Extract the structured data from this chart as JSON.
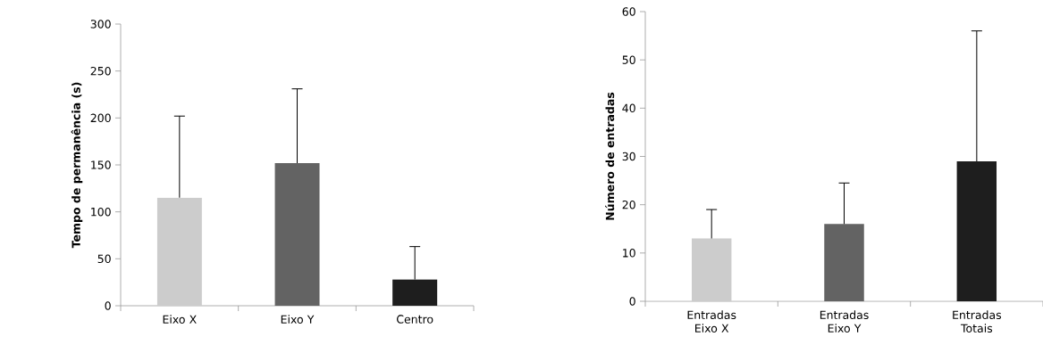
{
  "chart_data": [
    {
      "type": "bar",
      "ylabel": "Tempo de permanência (s)",
      "categories": [
        "Eixo X",
        "Eixo Y",
        "Centro"
      ],
      "values": [
        115,
        152,
        28
      ],
      "colors": [
        "#cccccc",
        "#636363",
        "#1e1e1e"
      ],
      "errors": [
        [
          115,
          202
        ],
        [
          152,
          231
        ],
        [
          28,
          63
        ]
      ],
      "ylim": [
        0,
        300
      ],
      "yticks": [
        0,
        50,
        100,
        150,
        200,
        250,
        300
      ]
    },
    {
      "type": "bar",
      "ylabel": "Número de entradas",
      "categories": [
        "Entradas Eixo X",
        "Entradas Eixo Y",
        "Entradas Totais"
      ],
      "values": [
        13,
        16,
        29
      ],
      "colors": [
        "#cccccc",
        "#636363",
        "#1e1e1e"
      ],
      "errors": [
        [
          13,
          19
        ],
        [
          16,
          24.5
        ],
        [
          29,
          56
        ]
      ],
      "ylim": [
        0,
        60
      ],
      "yticks": [
        0,
        10,
        20,
        30,
        40,
        50,
        60
      ]
    }
  ]
}
